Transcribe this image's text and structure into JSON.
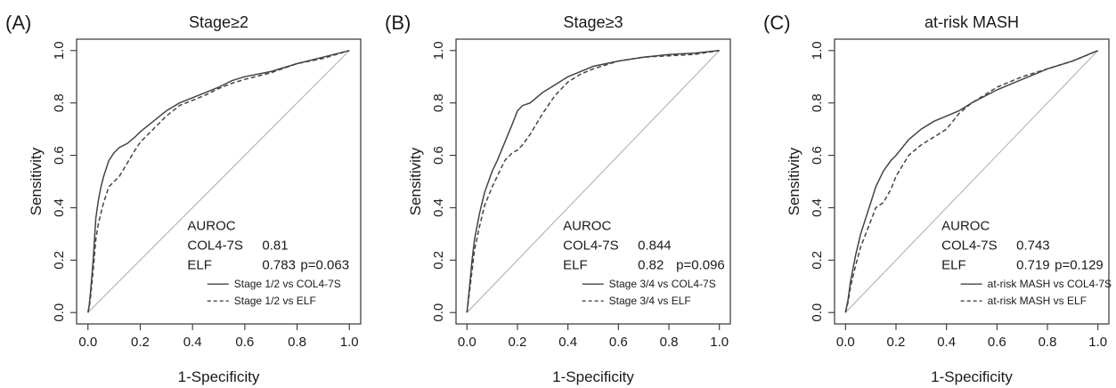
{
  "chart_data": [
    {
      "type": "line",
      "panel_label": "(A)",
      "title": "Stage≥2",
      "xlabel": "1-Specificity",
      "ylabel": "Sensitivity",
      "xlim": [
        0,
        1
      ],
      "ylim": [
        0,
        1
      ],
      "xticks": [
        "0.0",
        "0.2",
        "0.4",
        "0.6",
        "0.8",
        "1.0"
      ],
      "yticks": [
        "0.0",
        "0.2",
        "0.4",
        "0.6",
        "0.8",
        "1.0"
      ],
      "grid": false,
      "legend_position": "bottom-right",
      "auroc": {
        "heading": "AUROC",
        "rows": [
          {
            "name": "COL4-7S",
            "value": "0.81",
            "p": ""
          },
          {
            "name": "ELF",
            "value": "0.783",
            "p": "p=0.063"
          }
        ]
      },
      "series": [
        {
          "name": "Stage 1/2 vs COL4-7S",
          "style": "solid",
          "color": "#444444",
          "x": [
            0,
            0.005,
            0.01,
            0.02,
            0.03,
            0.04,
            0.05,
            0.06,
            0.07,
            0.08,
            0.1,
            0.12,
            0.15,
            0.18,
            0.2,
            0.25,
            0.3,
            0.35,
            0.4,
            0.45,
            0.5,
            0.55,
            0.6,
            0.7,
            0.8,
            0.9,
            1.0
          ],
          "y": [
            0,
            0.03,
            0.08,
            0.2,
            0.36,
            0.43,
            0.48,
            0.52,
            0.55,
            0.58,
            0.61,
            0.63,
            0.645,
            0.67,
            0.69,
            0.73,
            0.77,
            0.8,
            0.82,
            0.84,
            0.86,
            0.885,
            0.9,
            0.92,
            0.95,
            0.975,
            1.0
          ]
        },
        {
          "name": "Stage 1/2 vs ELF",
          "style": "dashed",
          "color": "#444444",
          "x": [
            0,
            0.005,
            0.01,
            0.02,
            0.03,
            0.04,
            0.05,
            0.06,
            0.07,
            0.08,
            0.1,
            0.12,
            0.15,
            0.18,
            0.2,
            0.25,
            0.3,
            0.35,
            0.4,
            0.45,
            0.5,
            0.55,
            0.6,
            0.7,
            0.8,
            0.9,
            1.0
          ],
          "y": [
            0,
            0.02,
            0.06,
            0.16,
            0.28,
            0.34,
            0.38,
            0.42,
            0.45,
            0.48,
            0.5,
            0.52,
            0.57,
            0.62,
            0.65,
            0.7,
            0.75,
            0.79,
            0.81,
            0.83,
            0.855,
            0.875,
            0.89,
            0.915,
            0.95,
            0.97,
            1.0
          ]
        }
      ]
    },
    {
      "type": "line",
      "panel_label": "(B)",
      "title": "Stage≥3",
      "xlabel": "1-Specificity",
      "ylabel": "Sensitivity",
      "xlim": [
        0,
        1
      ],
      "ylim": [
        0,
        1
      ],
      "xticks": [
        "0.0",
        "0.2",
        "0.4",
        "0.6",
        "0.8",
        "1.0"
      ],
      "yticks": [
        "0.0",
        "0.2",
        "0.4",
        "0.6",
        "0.8",
        "1.0"
      ],
      "grid": false,
      "legend_position": "bottom-right",
      "auroc": {
        "heading": "AUROC",
        "rows": [
          {
            "name": "COL4-7S",
            "value": "0.844",
            "p": ""
          },
          {
            "name": "ELF",
            "value": "0.82",
            "p": "p=0.096"
          }
        ]
      },
      "series": [
        {
          "name": "Stage 3/4 vs COL4-7S",
          "style": "solid",
          "color": "#444444",
          "x": [
            0,
            0.01,
            0.02,
            0.03,
            0.05,
            0.07,
            0.1,
            0.12,
            0.15,
            0.18,
            0.2,
            0.22,
            0.25,
            0.3,
            0.35,
            0.4,
            0.45,
            0.5,
            0.6,
            0.7,
            0.8,
            0.9,
            1.0
          ],
          "y": [
            0,
            0.1,
            0.2,
            0.28,
            0.38,
            0.46,
            0.54,
            0.58,
            0.65,
            0.72,
            0.77,
            0.79,
            0.8,
            0.84,
            0.87,
            0.9,
            0.92,
            0.94,
            0.96,
            0.975,
            0.985,
            0.99,
            1.0
          ]
        },
        {
          "name": "Stage 3/4 vs ELF",
          "style": "dashed",
          "color": "#444444",
          "x": [
            0,
            0.01,
            0.02,
            0.03,
            0.05,
            0.07,
            0.1,
            0.12,
            0.15,
            0.18,
            0.2,
            0.22,
            0.25,
            0.3,
            0.35,
            0.4,
            0.45,
            0.5,
            0.6,
            0.7,
            0.8,
            0.9,
            1.0
          ],
          "y": [
            0,
            0.08,
            0.16,
            0.24,
            0.33,
            0.41,
            0.48,
            0.52,
            0.58,
            0.61,
            0.62,
            0.64,
            0.68,
            0.76,
            0.83,
            0.88,
            0.91,
            0.93,
            0.96,
            0.975,
            0.98,
            0.985,
            1.0
          ]
        }
      ]
    },
    {
      "type": "line",
      "panel_label": "(C)",
      "title": "at-risk MASH",
      "xlabel": "1-Specificity",
      "ylabel": "Sensitivity",
      "xlim": [
        0,
        1
      ],
      "ylim": [
        0,
        1
      ],
      "xticks": [
        "0.0",
        "0.2",
        "0.4",
        "0.6",
        "0.8",
        "1.0"
      ],
      "yticks": [
        "0.0",
        "0.2",
        "0.4",
        "0.6",
        "0.8",
        "1.0"
      ],
      "grid": false,
      "legend_position": "bottom-right",
      "auroc": {
        "heading": "AUROC",
        "rows": [
          {
            "name": "COL4-7S",
            "value": "0.743",
            "p": ""
          },
          {
            "name": "ELF",
            "value": "0.719",
            "p": "p=0.129"
          }
        ]
      },
      "series": [
        {
          "name": "at-risk MASH vs COL4-7S",
          "style": "solid",
          "color": "#444444",
          "x": [
            0,
            0.01,
            0.02,
            0.04,
            0.06,
            0.08,
            0.1,
            0.12,
            0.15,
            0.18,
            0.2,
            0.25,
            0.3,
            0.35,
            0.4,
            0.45,
            0.5,
            0.6,
            0.7,
            0.8,
            0.9,
            1.0
          ],
          "y": [
            0,
            0.05,
            0.12,
            0.22,
            0.3,
            0.36,
            0.42,
            0.48,
            0.54,
            0.58,
            0.6,
            0.66,
            0.7,
            0.73,
            0.75,
            0.77,
            0.8,
            0.85,
            0.89,
            0.93,
            0.96,
            1.0
          ]
        },
        {
          "name": "at-risk MASH vs ELF",
          "style": "dashed",
          "color": "#444444",
          "x": [
            0,
            0.01,
            0.02,
            0.04,
            0.06,
            0.08,
            0.1,
            0.12,
            0.15,
            0.18,
            0.2,
            0.25,
            0.3,
            0.35,
            0.4,
            0.45,
            0.5,
            0.6,
            0.7,
            0.8,
            0.9,
            1.0
          ],
          "y": [
            0,
            0.04,
            0.1,
            0.18,
            0.25,
            0.3,
            0.35,
            0.4,
            0.42,
            0.47,
            0.52,
            0.6,
            0.64,
            0.67,
            0.7,
            0.76,
            0.8,
            0.86,
            0.9,
            0.93,
            0.96,
            1.0
          ]
        }
      ]
    }
  ]
}
